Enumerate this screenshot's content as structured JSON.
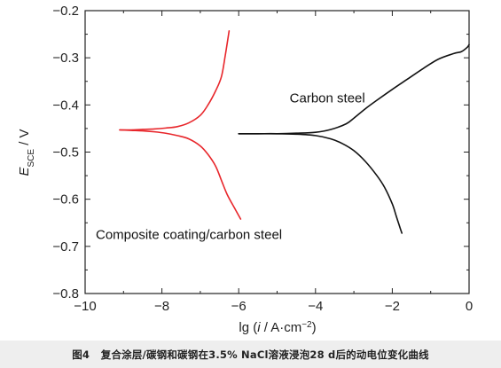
{
  "caption": {
    "figure_no": "图4",
    "text": "复合涂层/碳钢和碳钢在3.5% NaCl溶液浸泡28 d后的动电位变化曲线"
  },
  "chart_data": {
    "type": "line",
    "xlabel": {
      "prefix": "lg (",
      "var": "i",
      "mid": " / A·cm",
      "sup": "−2",
      "suffix": ")"
    },
    "ylabel": {
      "var": "E",
      "sub": "SCE",
      "suffix": " / V"
    },
    "xlim": [
      -10,
      0
    ],
    "ylim": [
      -0.8,
      -0.2
    ],
    "xticks": [
      -10,
      -8,
      -6,
      -4,
      -2,
      0
    ],
    "yticks": [
      -0.8,
      -0.7,
      -0.6,
      -0.5,
      -0.4,
      -0.3,
      -0.2
    ],
    "xtick_labels": [
      "−10",
      "−8",
      "−6",
      "−4",
      "−2",
      "0"
    ],
    "ytick_labels": [
      "−0.8",
      "−0.7",
      "−0.6",
      "−0.5",
      "−0.4",
      "−0.3",
      "−0.2"
    ],
    "grid": false,
    "series": [
      {
        "name": "Composite coating/carbon steel",
        "color": "#e8262b",
        "branches": [
          {
            "x": [
              -9.1,
              -8.8,
              -8.5,
              -8.2,
              -7.9,
              -7.6,
              -7.3,
              -7.0,
              -6.8,
              -6.6,
              -6.45,
              -6.35,
              -6.25
            ],
            "y": [
              -0.453,
              -0.453,
              -0.452,
              -0.451,
              -0.449,
              -0.446,
              -0.438,
              -0.422,
              -0.4,
              -0.37,
              -0.34,
              -0.295,
              -0.243
            ]
          },
          {
            "x": [
              -9.1,
              -8.8,
              -8.5,
              -8.2,
              -7.9,
              -7.6,
              -7.3,
              -7.0,
              -6.8,
              -6.6,
              -6.45,
              -6.3,
              -6.1,
              -5.95
            ],
            "y": [
              -0.453,
              -0.454,
              -0.455,
              -0.457,
              -0.46,
              -0.465,
              -0.472,
              -0.487,
              -0.505,
              -0.53,
              -0.56,
              -0.59,
              -0.62,
              -0.642
            ]
          }
        ],
        "label_pos": {
          "x": -10.0,
          "y": -0.675
        }
      },
      {
        "name": "Carbon steel",
        "color": "#111111",
        "branches": [
          {
            "x": [
              -6.0,
              -5.5,
              -5.0,
              -4.5,
              -4.0,
              -3.6,
              -3.2,
              -3.0,
              -2.7,
              -2.4,
              -2.0,
              -1.6,
              -1.2,
              -0.8,
              -0.4,
              -0.2,
              -0.05,
              0.0
            ],
            "y": [
              -0.461,
              -0.461,
              -0.461,
              -0.46,
              -0.458,
              -0.452,
              -0.44,
              -0.428,
              -0.408,
              -0.39,
              -0.367,
              -0.345,
              -0.323,
              -0.303,
              -0.291,
              -0.287,
              -0.278,
              -0.272
            ]
          },
          {
            "x": [
              -6.0,
              -5.5,
              -5.0,
              -4.5,
              -4.0,
              -3.6,
              -3.3,
              -3.0,
              -2.7,
              -2.4,
              -2.2,
              -2.0,
              -1.9,
              -1.8,
              -1.75
            ],
            "y": [
              -0.461,
              -0.461,
              -0.461,
              -0.462,
              -0.465,
              -0.472,
              -0.482,
              -0.497,
              -0.52,
              -0.55,
              -0.575,
              -0.61,
              -0.635,
              -0.66,
              -0.672
            ]
          }
        ],
        "label_pos": {
          "x": -4.95,
          "y": -0.385
        }
      }
    ]
  }
}
